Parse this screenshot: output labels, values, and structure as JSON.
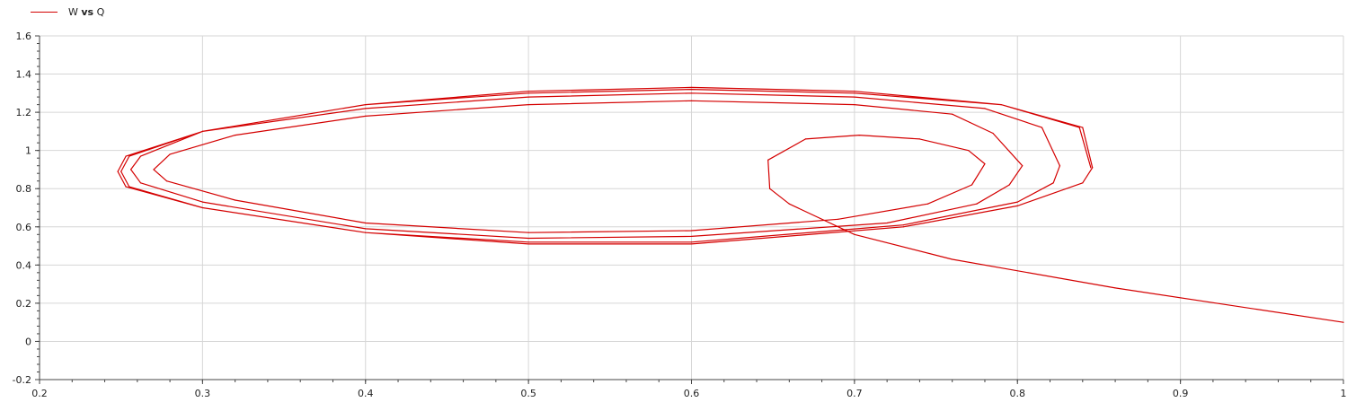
{
  "chart_data": {
    "type": "line",
    "legend": {
      "placement": "top-left",
      "entries": [
        {
          "name": "W vs Q",
          "color": "#d40000"
        }
      ]
    },
    "xlim": [
      0.2,
      1.0
    ],
    "ylim": [
      -0.2,
      1.6
    ],
    "xticks": [
      "0.2",
      "0.3",
      "0.4",
      "0.5",
      "0.6",
      "0.7",
      "0.8",
      "0.9",
      "1"
    ],
    "yticks": [
      "-0.2",
      "0",
      "0.2",
      "0.4",
      "0.6",
      "0.8",
      "1",
      "1.2",
      "1.4",
      "1.6"
    ],
    "grid": true,
    "series": [
      {
        "name": "W vs Q",
        "color": "#d40000",
        "x": [
          1.0,
          0.86,
          0.76,
          0.7,
          0.66,
          0.648,
          0.647,
          0.67,
          0.703,
          0.74,
          0.77,
          0.78,
          0.772,
          0.745,
          0.69,
          0.6,
          0.5,
          0.4,
          0.32,
          0.278,
          0.27,
          0.28,
          0.32,
          0.4,
          0.5,
          0.6,
          0.7,
          0.76,
          0.785,
          0.803,
          0.795,
          0.775,
          0.72,
          0.6,
          0.5,
          0.4,
          0.3,
          0.262,
          0.256,
          0.262,
          0.3,
          0.4,
          0.5,
          0.6,
          0.7,
          0.78,
          0.815,
          0.826,
          0.822,
          0.8,
          0.73,
          0.6,
          0.5,
          0.4,
          0.3,
          0.255,
          0.25,
          0.255,
          0.3,
          0.4,
          0.5,
          0.6,
          0.7,
          0.79,
          0.84,
          0.846,
          0.84,
          0.8,
          0.73,
          0.6,
          0.5,
          0.4,
          0.3,
          0.253,
          0.248,
          0.253,
          0.3,
          0.4,
          0.5,
          0.6,
          0.7,
          0.79,
          0.838,
          0.845
        ],
        "y": [
          0.1,
          0.28,
          0.43,
          0.56,
          0.72,
          0.8,
          0.95,
          1.06,
          1.08,
          1.06,
          1.0,
          0.93,
          0.82,
          0.72,
          0.64,
          0.58,
          0.57,
          0.62,
          0.74,
          0.84,
          0.9,
          0.98,
          1.08,
          1.18,
          1.24,
          1.26,
          1.24,
          1.19,
          1.09,
          0.92,
          0.82,
          0.72,
          0.62,
          0.55,
          0.54,
          0.59,
          0.73,
          0.83,
          0.9,
          0.97,
          1.1,
          1.22,
          1.28,
          1.3,
          1.28,
          1.22,
          1.12,
          0.92,
          0.83,
          0.73,
          0.61,
          0.52,
          0.52,
          0.57,
          0.7,
          0.81,
          0.89,
          0.97,
          1.1,
          1.24,
          1.3,
          1.32,
          1.3,
          1.24,
          1.12,
          0.91,
          0.83,
          0.71,
          0.6,
          0.51,
          0.51,
          0.57,
          0.7,
          0.81,
          0.89,
          0.97,
          1.1,
          1.24,
          1.31,
          1.33,
          1.31,
          1.24,
          1.12,
          0.91
        ]
      }
    ]
  }
}
